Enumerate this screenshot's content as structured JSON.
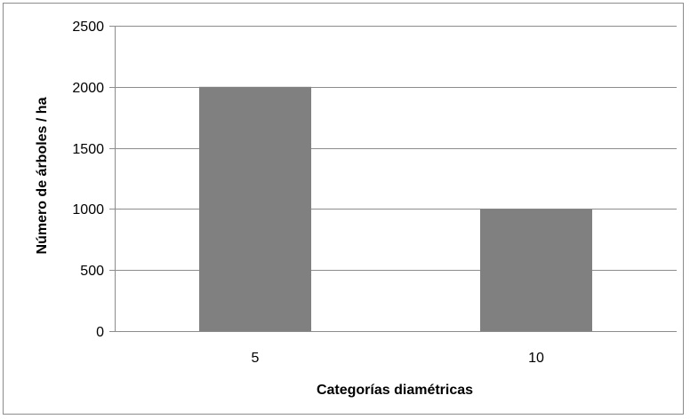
{
  "chart_data": {
    "type": "bar",
    "title": "",
    "xlabel": "Categorías diamétricas",
    "ylabel": "Número de árboles / ha",
    "categories": [
      "5",
      "10"
    ],
    "values": [
      2000,
      1000
    ],
    "ylim": [
      0,
      2500
    ],
    "yticks": [
      0,
      500,
      1000,
      1500,
      2000,
      2500
    ],
    "grid": true,
    "legend": "none",
    "colors": {
      "bar": "#808080",
      "gridline": "#8c8c8c",
      "axis": "#8c8c8c"
    }
  }
}
